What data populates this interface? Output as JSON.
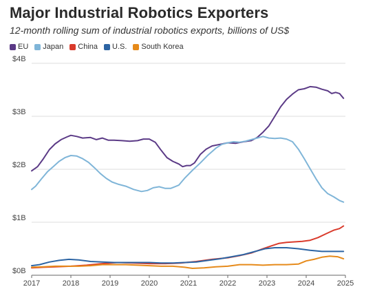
{
  "chart_data": {
    "type": "line",
    "title": "Major Industrial Robotics Exporters",
    "subtitle": "12-month rolling sum of industrial robotics exports, billions of US$",
    "xlabel": "",
    "ylabel": "",
    "xlim": [
      2017,
      2025
    ],
    "ylim": [
      0,
      4
    ],
    "grid": true,
    "legend_position": "top-left",
    "y_ticks": [
      {
        "value": 0,
        "label": "$0B"
      },
      {
        "value": 1,
        "label": "$1B"
      },
      {
        "value": 2,
        "label": "$2B"
      },
      {
        "value": 3,
        "label": "$3B"
      },
      {
        "value": 4,
        "label": "$4B"
      }
    ],
    "x_ticks": [
      {
        "value": 2017,
        "label": "2017"
      },
      {
        "value": 2018,
        "label": "2018"
      },
      {
        "value": 2019,
        "label": "2019"
      },
      {
        "value": 2020,
        "label": "2020"
      },
      {
        "value": 2021,
        "label": "2021"
      },
      {
        "value": 2022,
        "label": "2022"
      },
      {
        "value": 2023,
        "label": "2023"
      },
      {
        "value": 2024,
        "label": "2024"
      },
      {
        "value": 2025,
        "label": "2025"
      }
    ],
    "series": [
      {
        "name": "EU",
        "color": "#5b3a86",
        "points": [
          [
            2017.0,
            1.97
          ],
          [
            2017.15,
            2.05
          ],
          [
            2017.3,
            2.2
          ],
          [
            2017.45,
            2.37
          ],
          [
            2017.6,
            2.48
          ],
          [
            2017.75,
            2.56
          ],
          [
            2017.9,
            2.61
          ],
          [
            2018.0,
            2.64
          ],
          [
            2018.15,
            2.62
          ],
          [
            2018.3,
            2.59
          ],
          [
            2018.5,
            2.6
          ],
          [
            2018.65,
            2.56
          ],
          [
            2018.8,
            2.59
          ],
          [
            2018.95,
            2.55
          ],
          [
            2019.1,
            2.55
          ],
          [
            2019.3,
            2.54
          ],
          [
            2019.5,
            2.53
          ],
          [
            2019.7,
            2.54
          ],
          [
            2019.85,
            2.57
          ],
          [
            2020.0,
            2.57
          ],
          [
            2020.15,
            2.51
          ],
          [
            2020.3,
            2.36
          ],
          [
            2020.45,
            2.22
          ],
          [
            2020.6,
            2.15
          ],
          [
            2020.75,
            2.1
          ],
          [
            2020.85,
            2.05
          ],
          [
            2020.95,
            2.07
          ],
          [
            2021.05,
            2.07
          ],
          [
            2021.15,
            2.12
          ],
          [
            2021.3,
            2.28
          ],
          [
            2021.45,
            2.38
          ],
          [
            2021.6,
            2.44
          ],
          [
            2021.8,
            2.47
          ],
          [
            2022.0,
            2.5
          ],
          [
            2022.2,
            2.49
          ],
          [
            2022.4,
            2.52
          ],
          [
            2022.6,
            2.54
          ],
          [
            2022.75,
            2.6
          ],
          [
            2022.9,
            2.7
          ],
          [
            2023.05,
            2.82
          ],
          [
            2023.2,
            3.0
          ],
          [
            2023.35,
            3.18
          ],
          [
            2023.5,
            3.32
          ],
          [
            2023.65,
            3.42
          ],
          [
            2023.8,
            3.5
          ],
          [
            2023.95,
            3.52
          ],
          [
            2024.1,
            3.56
          ],
          [
            2024.25,
            3.55
          ],
          [
            2024.4,
            3.51
          ],
          [
            2024.55,
            3.48
          ],
          [
            2024.65,
            3.43
          ],
          [
            2024.75,
            3.45
          ],
          [
            2024.85,
            3.43
          ],
          [
            2024.95,
            3.34
          ]
        ]
      },
      {
        "name": "Japan",
        "color": "#7fb5d8",
        "points": [
          [
            2017.0,
            1.62
          ],
          [
            2017.1,
            1.68
          ],
          [
            2017.25,
            1.82
          ],
          [
            2017.4,
            1.95
          ],
          [
            2017.55,
            2.05
          ],
          [
            2017.7,
            2.15
          ],
          [
            2017.85,
            2.22
          ],
          [
            2018.0,
            2.26
          ],
          [
            2018.15,
            2.25
          ],
          [
            2018.3,
            2.2
          ],
          [
            2018.45,
            2.13
          ],
          [
            2018.6,
            2.03
          ],
          [
            2018.75,
            1.92
          ],
          [
            2018.9,
            1.83
          ],
          [
            2019.05,
            1.76
          ],
          [
            2019.2,
            1.72
          ],
          [
            2019.4,
            1.68
          ],
          [
            2019.6,
            1.62
          ],
          [
            2019.8,
            1.58
          ],
          [
            2019.95,
            1.6
          ],
          [
            2020.1,
            1.65
          ],
          [
            2020.25,
            1.67
          ],
          [
            2020.4,
            1.64
          ],
          [
            2020.55,
            1.64
          ],
          [
            2020.75,
            1.7
          ],
          [
            2020.9,
            1.83
          ],
          [
            2021.1,
            1.98
          ],
          [
            2021.3,
            2.12
          ],
          [
            2021.5,
            2.27
          ],
          [
            2021.7,
            2.4
          ],
          [
            2021.85,
            2.47
          ],
          [
            2022.0,
            2.5
          ],
          [
            2022.15,
            2.52
          ],
          [
            2022.3,
            2.51
          ],
          [
            2022.45,
            2.53
          ],
          [
            2022.6,
            2.56
          ],
          [
            2022.75,
            2.59
          ],
          [
            2022.9,
            2.62
          ],
          [
            2023.05,
            2.59
          ],
          [
            2023.2,
            2.58
          ],
          [
            2023.35,
            2.59
          ],
          [
            2023.5,
            2.57
          ],
          [
            2023.65,
            2.52
          ],
          [
            2023.8,
            2.38
          ],
          [
            2023.95,
            2.2
          ],
          [
            2024.1,
            2.01
          ],
          [
            2024.25,
            1.82
          ],
          [
            2024.4,
            1.65
          ],
          [
            2024.55,
            1.54
          ],
          [
            2024.7,
            1.48
          ],
          [
            2024.85,
            1.41
          ],
          [
            2024.95,
            1.38
          ]
        ]
      },
      {
        "name": "China",
        "color": "#d93a2b",
        "points": [
          [
            2017.0,
            0.14
          ],
          [
            2017.3,
            0.15
          ],
          [
            2017.6,
            0.16
          ],
          [
            2018.0,
            0.17
          ],
          [
            2018.4,
            0.19
          ],
          [
            2018.8,
            0.22
          ],
          [
            2019.2,
            0.24
          ],
          [
            2019.6,
            0.23
          ],
          [
            2020.0,
            0.22
          ],
          [
            2020.4,
            0.22
          ],
          [
            2020.8,
            0.23
          ],
          [
            2021.2,
            0.26
          ],
          [
            2021.6,
            0.3
          ],
          [
            2022.0,
            0.33
          ],
          [
            2022.3,
            0.37
          ],
          [
            2022.6,
            0.42
          ],
          [
            2022.9,
            0.5
          ],
          [
            2023.1,
            0.55
          ],
          [
            2023.3,
            0.6
          ],
          [
            2023.5,
            0.62
          ],
          [
            2023.7,
            0.63
          ],
          [
            2023.9,
            0.64
          ],
          [
            2024.1,
            0.66
          ],
          [
            2024.3,
            0.71
          ],
          [
            2024.5,
            0.78
          ],
          [
            2024.7,
            0.85
          ],
          [
            2024.85,
            0.88
          ],
          [
            2024.95,
            0.93
          ]
        ]
      },
      {
        "name": "U.S.",
        "color": "#2c64a3",
        "points": [
          [
            2017.0,
            0.18
          ],
          [
            2017.2,
            0.2
          ],
          [
            2017.45,
            0.25
          ],
          [
            2017.7,
            0.28
          ],
          [
            2017.95,
            0.3
          ],
          [
            2018.2,
            0.29
          ],
          [
            2018.5,
            0.26
          ],
          [
            2018.8,
            0.25
          ],
          [
            2019.1,
            0.24
          ],
          [
            2019.4,
            0.24
          ],
          [
            2019.7,
            0.24
          ],
          [
            2020.0,
            0.24
          ],
          [
            2020.3,
            0.23
          ],
          [
            2020.6,
            0.23
          ],
          [
            2020.9,
            0.24
          ],
          [
            2021.2,
            0.25
          ],
          [
            2021.5,
            0.28
          ],
          [
            2021.8,
            0.31
          ],
          [
            2022.1,
            0.35
          ],
          [
            2022.4,
            0.39
          ],
          [
            2022.7,
            0.45
          ],
          [
            2022.95,
            0.5
          ],
          [
            2023.2,
            0.52
          ],
          [
            2023.5,
            0.52
          ],
          [
            2023.8,
            0.5
          ],
          [
            2024.1,
            0.47
          ],
          [
            2024.4,
            0.45
          ],
          [
            2024.7,
            0.45
          ],
          [
            2024.95,
            0.45
          ]
        ]
      },
      {
        "name": "South Korea",
        "color": "#e68a1a",
        "points": [
          [
            2017.0,
            0.15
          ],
          [
            2017.3,
            0.16
          ],
          [
            2017.6,
            0.17
          ],
          [
            2017.9,
            0.17
          ],
          [
            2018.2,
            0.17
          ],
          [
            2018.5,
            0.18
          ],
          [
            2018.8,
            0.2
          ],
          [
            2019.1,
            0.2
          ],
          [
            2019.4,
            0.2
          ],
          [
            2019.7,
            0.19
          ],
          [
            2020.0,
            0.18
          ],
          [
            2020.3,
            0.17
          ],
          [
            2020.6,
            0.17
          ],
          [
            2020.9,
            0.15
          ],
          [
            2021.1,
            0.13
          ],
          [
            2021.4,
            0.14
          ],
          [
            2021.7,
            0.16
          ],
          [
            2022.0,
            0.17
          ],
          [
            2022.3,
            0.2
          ],
          [
            2022.6,
            0.2
          ],
          [
            2022.9,
            0.19
          ],
          [
            2023.2,
            0.2
          ],
          [
            2023.5,
            0.2
          ],
          [
            2023.8,
            0.21
          ],
          [
            2024.0,
            0.27
          ],
          [
            2024.2,
            0.3
          ],
          [
            2024.4,
            0.34
          ],
          [
            2024.6,
            0.36
          ],
          [
            2024.8,
            0.35
          ],
          [
            2024.95,
            0.31
          ]
        ]
      }
    ]
  }
}
